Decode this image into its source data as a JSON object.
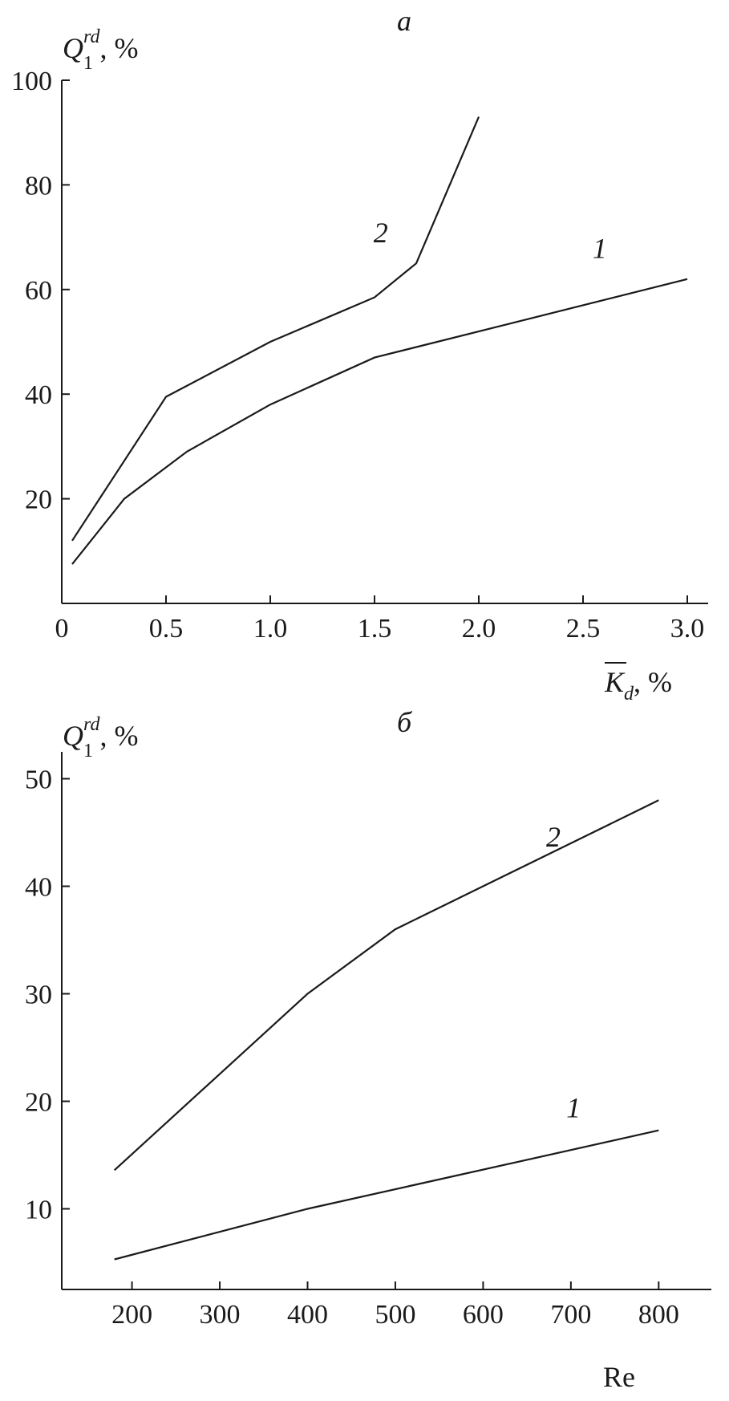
{
  "chart_data": [
    {
      "type": "line",
      "title": "а",
      "ylabel": {
        "main": "Q",
        "sub": "1",
        "sup": "rd",
        "unit": ", %"
      },
      "xlabel": {
        "main": "K",
        "sub": "d",
        "unit": ", %",
        "overline": true
      },
      "xlim": [
        0,
        3.1
      ],
      "ylim": [
        0,
        100
      ],
      "xticks": [
        0,
        0.5,
        1.0,
        1.5,
        2.0,
        2.5,
        3.0
      ],
      "xtick_labels": [
        "0",
        "0.5",
        "1.0",
        "1.5",
        "2.0",
        "2.5",
        "3.0"
      ],
      "yticks": [
        20,
        40,
        60,
        80,
        100
      ],
      "ytick_labels": [
        "20",
        "40",
        "60",
        "80",
        "100"
      ],
      "series": [
        {
          "name": "1",
          "x": [
            0.05,
            0.3,
            0.6,
            1.0,
            1.5,
            3.0
          ],
          "y": [
            7.5,
            20,
            29,
            38,
            47,
            62
          ]
        },
        {
          "name": "2",
          "x": [
            0.05,
            0.5,
            1.0,
            1.5,
            1.7,
            2.0
          ],
          "y": [
            12,
            39.5,
            50,
            58.5,
            65,
            93
          ]
        }
      ],
      "series_label_pos": [
        {
          "x": 2.58,
          "y": 66
        },
        {
          "x": 1.53,
          "y": 69
        }
      ],
      "grid": false
    },
    {
      "type": "line",
      "title": "б",
      "ylabel": {
        "main": "Q",
        "sub": "1",
        "sup": "rd",
        "unit": ", %"
      },
      "xlabel": {
        "main": "Re"
      },
      "xlim": [
        120,
        860
      ],
      "ylim": [
        2.5,
        52.5
      ],
      "xticks": [
        200,
        300,
        400,
        500,
        600,
        700,
        800
      ],
      "xtick_labels": [
        "200",
        "300",
        "400",
        "500",
        "600",
        "700",
        "800"
      ],
      "yticks": [
        10,
        20,
        30,
        40,
        50
      ],
      "ytick_labels": [
        "10",
        "20",
        "30",
        "40",
        "50"
      ],
      "series": [
        {
          "name": "1",
          "x": [
            180,
            400,
            800
          ],
          "y": [
            5.3,
            10,
            17.3
          ]
        },
        {
          "name": "2",
          "x": [
            180,
            400,
            500,
            800
          ],
          "y": [
            13.6,
            30,
            36,
            48
          ]
        }
      ],
      "series_label_pos": [
        {
          "x": 703,
          "y": 18.5
        },
        {
          "x": 680,
          "y": 43.7
        }
      ],
      "grid": false
    }
  ]
}
